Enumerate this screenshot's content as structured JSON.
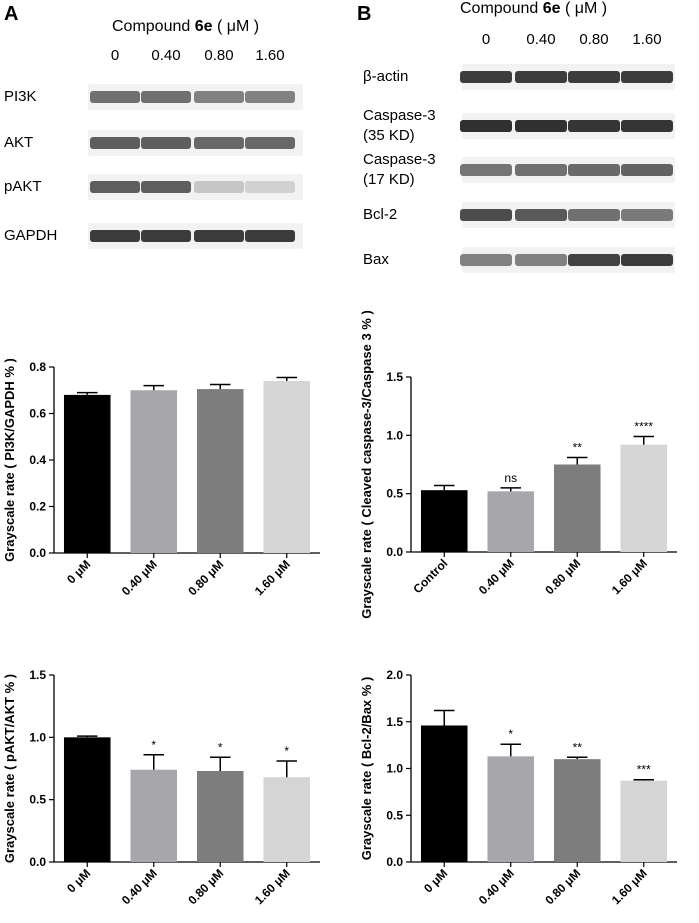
{
  "panels": {
    "a": {
      "letter": "A",
      "header_prefix": "Compound ",
      "header_bold": "6e",
      "header_suffix": " ( μM )",
      "concentrations": [
        "0",
        "0.40",
        "0.80",
        "1.60"
      ],
      "blots": [
        {
          "label": "PI3K",
          "intensity": [
            0.62,
            0.62,
            0.55,
            0.55
          ]
        },
        {
          "label": "AKT",
          "intensity": [
            0.7,
            0.7,
            0.66,
            0.66
          ]
        },
        {
          "label": "pAKT",
          "intensity": [
            0.7,
            0.7,
            0.25,
            0.2
          ]
        },
        {
          "label": "GAPDH",
          "intensity": [
            0.85,
            0.85,
            0.85,
            0.85
          ]
        }
      ]
    },
    "b": {
      "letter": "B",
      "header_prefix": "Compound ",
      "header_bold": "6e",
      "header_suffix": " ( μM )",
      "concentrations": [
        "0",
        "0.40",
        "0.80",
        "1.60"
      ],
      "blots": [
        {
          "label": "β-actin",
          "intensity": [
            0.85,
            0.85,
            0.85,
            0.85
          ]
        },
        {
          "label": "Caspase-3\n(35 KD)",
          "intensity": [
            0.9,
            0.9,
            0.88,
            0.88
          ]
        },
        {
          "label": "Caspase-3\n(17 KD)",
          "intensity": [
            0.6,
            0.62,
            0.65,
            0.68
          ]
        },
        {
          "label": "Bcl-2",
          "intensity": [
            0.78,
            0.72,
            0.62,
            0.58
          ]
        },
        {
          "label": "Bax",
          "intensity": [
            0.55,
            0.55,
            0.82,
            0.85
          ]
        }
      ]
    }
  },
  "chart_data": [
    {
      "id": "pi3k",
      "type": "bar",
      "ylabel": "Grayscale rate ( PI3K/GAPDH % )",
      "categories": [
        "0 μM",
        "0.40 μM",
        "0.80 μM",
        "1.60 μM"
      ],
      "values": [
        0.68,
        0.7,
        0.705,
        0.74
      ],
      "errors": [
        0.01,
        0.02,
        0.02,
        0.015
      ],
      "significance": [
        "",
        "",
        "",
        ""
      ],
      "ylim": [
        0,
        0.8
      ],
      "yticks": [
        "0.0",
        "0.2",
        "0.4",
        "0.6",
        "0.8"
      ],
      "colors": [
        "#000000",
        "#a7a6ab",
        "#7d7d7d",
        "#d5d5d5"
      ]
    },
    {
      "id": "caspase",
      "type": "bar",
      "ylabel": "Grayscale rate ( Cleaved caspase-3/Caspase 3 % )",
      "categories": [
        "Control",
        "0.40 μM",
        "0.80 μM",
        "1.60 μM"
      ],
      "values": [
        0.53,
        0.52,
        0.75,
        0.92
      ],
      "errors": [
        0.04,
        0.03,
        0.06,
        0.07
      ],
      "significance": [
        "",
        "ns",
        "**",
        "****"
      ],
      "ylim": [
        0,
        1.5
      ],
      "yticks": [
        "0.0",
        "0.5",
        "1.0",
        "1.5"
      ],
      "colors": [
        "#000000",
        "#a7a6ab",
        "#7d7d7d",
        "#d5d5d5"
      ]
    },
    {
      "id": "pakt",
      "type": "bar",
      "ylabel": "Grayscale rate ( pAKT/AKT % )",
      "categories": [
        "0 μM",
        "0.40 μM",
        "0.80 μM",
        "1.60 μM"
      ],
      "values": [
        1.0,
        0.74,
        0.73,
        0.68
      ],
      "errors": [
        0.01,
        0.12,
        0.11,
        0.13
      ],
      "significance": [
        "",
        "*",
        "*",
        "*"
      ],
      "ylim": [
        0,
        1.5
      ],
      "yticks": [
        "0.0",
        "0.5",
        "1.0",
        "1.5"
      ],
      "colors": [
        "#000000",
        "#a7a6ab",
        "#7d7d7d",
        "#d5d5d5"
      ]
    },
    {
      "id": "bcl2bax",
      "type": "bar",
      "ylabel": "Grayscale rate ( Bcl-2/Bax  % )",
      "categories": [
        "0 μM",
        "0.40 μM",
        "0.80 μM",
        "1.60 μM"
      ],
      "values": [
        1.46,
        1.13,
        1.1,
        0.87
      ],
      "errors": [
        0.16,
        0.13,
        0.02,
        0.01
      ],
      "significance": [
        "",
        "*",
        "**",
        "***"
      ],
      "ylim": [
        0,
        2.0
      ],
      "yticks": [
        "0.0",
        "0.5",
        "1.0",
        "1.5",
        "2.0"
      ],
      "colors": [
        "#000000",
        "#a7a6ab",
        "#7d7d7d",
        "#d5d5d5"
      ]
    }
  ]
}
